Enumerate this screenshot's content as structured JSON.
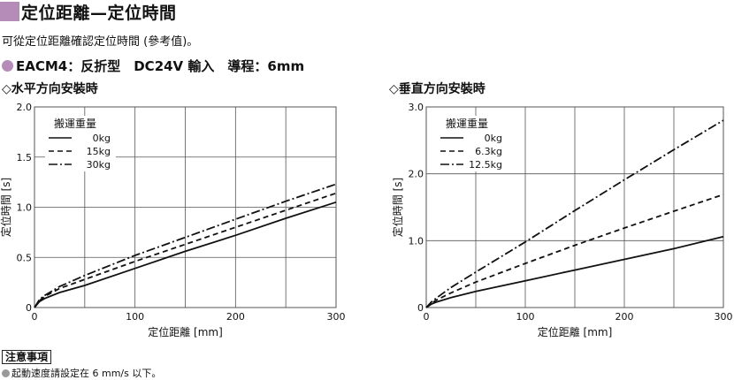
{
  "header": {
    "title": "定位距離—定位時間",
    "intro": "可從定位距離確認定位時間 (參考值)。",
    "model": "EACM4：反折型　DC24V 輸入　導程：6mm"
  },
  "notes": {
    "heading": "注意事項",
    "line": "起動速度請設定在 6 mm/s 以下。"
  },
  "colors": {
    "accent": "#b58bb8",
    "grid": "#555555",
    "line": "#111111"
  },
  "chart_data": [
    {
      "type": "line",
      "title": "◇水平方向安裝時",
      "xlabel": "定位距離 [mm]",
      "ylabel": "定位時間 [s]",
      "xlim": [
        0,
        300
      ],
      "ylim": [
        0,
        2.0
      ],
      "xticks": [
        0,
        100,
        200,
        300
      ],
      "xtick_labels": [
        "0",
        "100",
        "200",
        "300"
      ],
      "yticks": [
        0,
        0.5,
        1.0,
        1.5,
        2.0
      ],
      "ytick_labels": [
        "0",
        "0.5",
        "1.0",
        "1.5",
        "2.0"
      ],
      "x_grid": [
        50,
        100,
        150,
        200,
        250
      ],
      "grid": true,
      "legend_title": "搬運重量",
      "legend_position": "top-left",
      "series": [
        {
          "name": "0kg",
          "style": "solid",
          "x": [
            0,
            5,
            10,
            25,
            50,
            100,
            150,
            200,
            250,
            300
          ],
          "y": [
            0,
            0.06,
            0.09,
            0.15,
            0.22,
            0.39,
            0.56,
            0.72,
            0.89,
            1.05
          ]
        },
        {
          "name": "15kg",
          "style": "dash",
          "x": [
            0,
            5,
            10,
            25,
            50,
            100,
            150,
            200,
            250,
            300
          ],
          "y": [
            0,
            0.07,
            0.11,
            0.19,
            0.28,
            0.46,
            0.63,
            0.8,
            0.97,
            1.14
          ]
        },
        {
          "name": "30kg",
          "style": "dashdot",
          "x": [
            0,
            5,
            10,
            25,
            50,
            100,
            150,
            200,
            250,
            300
          ],
          "y": [
            0,
            0.08,
            0.12,
            0.21,
            0.32,
            0.52,
            0.7,
            0.88,
            1.06,
            1.23
          ]
        }
      ]
    },
    {
      "type": "line",
      "title": "◇垂直方向安裝時",
      "xlabel": "定位距離 [mm]",
      "ylabel": "定位時間 [s]",
      "xlim": [
        0,
        300
      ],
      "ylim": [
        0,
        3.0
      ],
      "xticks": [
        0,
        100,
        200,
        300
      ],
      "xtick_labels": [
        "0",
        "100",
        "200",
        "300"
      ],
      "yticks": [
        0,
        1.0,
        2.0,
        3.0
      ],
      "ytick_labels": [
        "0",
        "1.0",
        "2.0",
        "3.0"
      ],
      "x_grid": [
        50,
        100,
        150,
        200,
        250
      ],
      "grid": true,
      "legend_title": "搬運重量",
      "legend_position": "top-left",
      "series": [
        {
          "name": "0kg",
          "style": "solid",
          "x": [
            0,
            5,
            10,
            25,
            50,
            100,
            150,
            200,
            250,
            300
          ],
          "y": [
            0,
            0.05,
            0.08,
            0.15,
            0.24,
            0.4,
            0.56,
            0.72,
            0.88,
            1.06
          ]
        },
        {
          "name": "6.3kg",
          "style": "dash",
          "x": [
            0,
            5,
            10,
            25,
            50,
            100,
            150,
            200,
            250,
            300
          ],
          "y": [
            0,
            0.06,
            0.11,
            0.22,
            0.38,
            0.66,
            0.93,
            1.19,
            1.44,
            1.69
          ]
        },
        {
          "name": "12.5kg",
          "style": "dashdot",
          "x": [
            0,
            5,
            10,
            25,
            50,
            100,
            150,
            200,
            250,
            300
          ],
          "y": [
            0,
            0.08,
            0.14,
            0.3,
            0.53,
            0.98,
            1.45,
            1.91,
            2.36,
            2.8
          ]
        }
      ]
    }
  ]
}
